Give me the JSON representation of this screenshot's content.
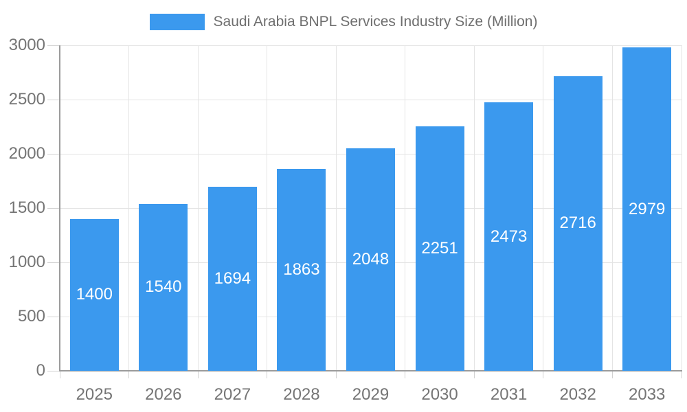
{
  "legend": {
    "label": "Saudi Arabia BNPL Services Industry Size (Million)"
  },
  "chart_data": {
    "type": "bar",
    "title": "",
    "xlabel": "",
    "ylabel": "",
    "categories": [
      "2025",
      "2026",
      "2027",
      "2028",
      "2029",
      "2030",
      "2031",
      "2032",
      "2033"
    ],
    "values": [
      1400,
      1540,
      1694,
      1863,
      2048,
      2251,
      2473,
      2716,
      2979
    ],
    "series_name": "Saudi Arabia BNPL Services Industry Size (Million)",
    "ylim": [
      0,
      3000
    ],
    "yticks": [
      "0",
      "500",
      "1000",
      "1500",
      "2000",
      "2500",
      "3000"
    ],
    "ytick_values": [
      0,
      500,
      1000,
      1500,
      2000,
      2500,
      3000
    ],
    "grid": "on",
    "legend_position": "top",
    "value_labels_position": "inside-center"
  },
  "colors": {
    "bar": "#3B99EE",
    "gridline": "#E4E4E4",
    "tick": "#D2D2D2",
    "axis_line": "#9B9B9B",
    "axis_text": "#757575",
    "legend_text": "#6E6E6E",
    "value_label": "#FFFFFF",
    "background": "#FFFFFF"
  }
}
